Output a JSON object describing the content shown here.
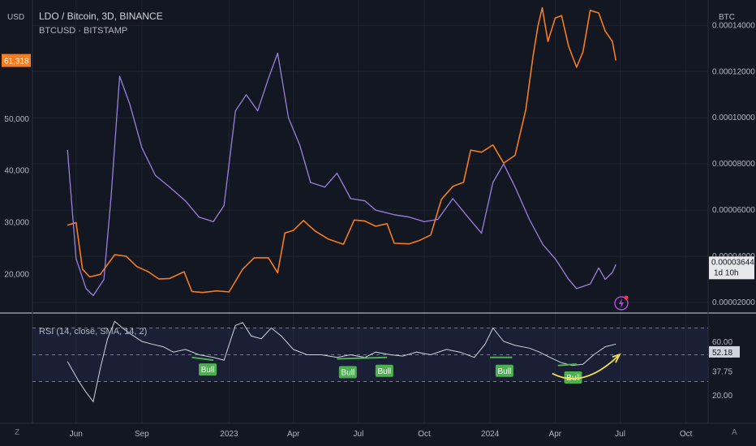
{
  "header": {
    "title": "LDO / Bitcoin, 3D, BINANCE",
    "compare": "BTCUSD · BITSTAMP"
  },
  "axis_units": {
    "left": "USD",
    "right": "BTC"
  },
  "rsi": {
    "label": "RSI (14, close, SMA, 14, 2)"
  },
  "corners": {
    "bottom_left": "Z",
    "bottom_right": "A"
  },
  "colors": {
    "background": "#131722",
    "btc_line": "#f57c1f",
    "ldo_candles": "#9b7fe0",
    "rsi_line": "#d1d4dc",
    "bull_label": "#4caf50",
    "divergence_arrow": "#f5e04c",
    "rsi_band": "#2a2e5a",
    "left_price_tag": "#f57c1f"
  },
  "chart_data": [
    {
      "type": "line",
      "title": "LDO / Bitcoin, 3D, BINANCE",
      "x_ticks": [
        "Jun",
        "Sep",
        "2023",
        "Apr",
        "Jul",
        "Oct",
        "2024",
        "Apr",
        "Jul",
        "Oct"
      ],
      "left_axis": {
        "label": "USD",
        "ticks": [
          "20,000",
          "30,000",
          "40,000",
          "50,000"
        ],
        "price_tag": "61,318"
      },
      "right_axis": {
        "label": "BTC",
        "ticks": [
          "0.00002000",
          "0.00004000",
          "0.00006000",
          "0.00008000",
          "0.00010000",
          "0.00012000",
          "0.00014000"
        ],
        "last_value_tag": "0.00003644",
        "countdown_tag": "1d 10h"
      },
      "series": [
        {
          "name": "BTCUSD · BITSTAMP",
          "axis": "left",
          "color": "#f57c1f",
          "x": [
            "2022-05-20",
            "2022-06-01",
            "2022-06-10",
            "2022-06-20",
            "2022-07-05",
            "2022-07-25",
            "2022-08-10",
            "2022-08-25",
            "2022-09-10",
            "2022-09-25",
            "2022-10-10",
            "2022-10-30",
            "2022-11-10",
            "2022-11-25",
            "2022-12-15",
            "2023-01-01",
            "2023-01-20",
            "2023-02-05",
            "2023-02-25",
            "2023-03-10",
            "2023-03-20",
            "2023-04-01",
            "2023-04-15",
            "2023-05-01",
            "2023-05-20",
            "2023-06-10",
            "2023-06-25",
            "2023-07-10",
            "2023-07-25",
            "2023-08-10",
            "2023-08-20",
            "2023-09-10",
            "2023-09-25",
            "2023-10-10",
            "2023-10-25",
            "2023-11-10",
            "2023-11-25",
            "2023-12-05",
            "2023-12-20",
            "2024-01-05",
            "2024-01-20",
            "2024-02-05",
            "2024-02-20",
            "2024-03-01",
            "2024-03-08",
            "2024-03-14",
            "2024-03-22",
            "2024-04-01",
            "2024-04-10",
            "2024-04-20",
            "2024-05-01",
            "2024-05-10",
            "2024-05-20",
            "2024-06-01",
            "2024-06-10",
            "2024-06-20",
            "2024-06-25"
          ],
          "y": [
            29500,
            30000,
            21000,
            19500,
            20000,
            23800,
            23500,
            21500,
            20500,
            19100,
            19200,
            20500,
            16700,
            16500,
            16800,
            16600,
            21000,
            23200,
            23200,
            20300,
            28000,
            28500,
            30400,
            28400,
            26800,
            25800,
            30500,
            30300,
            29300,
            29800,
            26000,
            25900,
            26600,
            27600,
            34500,
            37000,
            37800,
            44000,
            43600,
            45000,
            41500,
            43000,
            51800,
            62000,
            68000,
            71500,
            65000,
            69500,
            70000,
            64000,
            60000,
            63000,
            71000,
            70500,
            67000,
            65000,
            61318
          ]
        },
        {
          "name": "LDO / Bitcoin",
          "axis": "right",
          "color": "#9b7fe0",
          "x": [
            "2022-05-20",
            "2022-06-01",
            "2022-06-15",
            "2022-06-25",
            "2022-07-10",
            "2022-07-20",
            "2022-08-01",
            "2022-08-15",
            "2022-09-01",
            "2022-09-20",
            "2022-10-10",
            "2022-11-01",
            "2022-11-20",
            "2022-12-10",
            "2022-12-25",
            "2023-01-10",
            "2023-01-25",
            "2023-02-10",
            "2023-02-25",
            "2023-03-10",
            "2023-03-25",
            "2023-04-10",
            "2023-04-25",
            "2023-05-15",
            "2023-06-01",
            "2023-06-20",
            "2023-07-10",
            "2023-07-25",
            "2023-08-20",
            "2023-09-10",
            "2023-10-01",
            "2023-10-20",
            "2023-11-10",
            "2023-12-01",
            "2023-12-20",
            "2024-01-05",
            "2024-01-20",
            "2024-02-05",
            "2024-02-25",
            "2024-03-15",
            "2024-04-01",
            "2024-04-20",
            "2024-05-01",
            "2024-05-20",
            "2024-06-01",
            "2024-06-10",
            "2024-06-20",
            "2024-06-25"
          ],
          "y": [
            8.6e-05,
            3.9e-05,
            2.6e-05,
            2.3e-05,
            3e-05,
            6.6e-05,
            0.000118,
            0.000106,
            8.7e-05,
            7.5e-05,
            7e-05,
            6.4e-05,
            5.7e-05,
            5.5e-05,
            6.2e-05,
            0.000103,
            0.00011,
            0.000103,
            0.000117,
            0.000128,
            0.0001,
            8.8e-05,
            7.2e-05,
            7e-05,
            7.6e-05,
            6.5e-05,
            6.4e-05,
            6e-05,
            5.8e-05,
            5.7e-05,
            5.5e-05,
            5.6e-05,
            6.5e-05,
            5.7e-05,
            5e-05,
            7.2e-05,
            8e-05,
            7e-05,
            5.6e-05,
            4.5e-05,
            3.9e-05,
            3e-05,
            2.6e-05,
            2.8e-05,
            3.5e-05,
            3e-05,
            3.3e-05,
            3.64e-05
          ]
        }
      ],
      "xlim": [
        "2022-04-01",
        "2024-11-01"
      ],
      "left_ylim": [
        13000,
        73000
      ],
      "right_ylim": [
        1.65e-05,
        0.000151
      ],
      "grid": true
    },
    {
      "type": "line",
      "title": "RSI (14, close, SMA, 14, 2)",
      "y_ticks": [
        "20.00",
        "37.75",
        "50.22",
        "52.18",
        "60.00"
      ],
      "series": [
        {
          "name": "RSI (14, close, SMA, 14, 2)",
          "color": "#d1d4dc",
          "x": [
            "2022-05-20",
            "2022-06-05",
            "2022-06-15",
            "2022-06-25",
            "2022-07-05",
            "2022-07-15",
            "2022-07-25",
            "2022-08-05",
            "2022-08-15",
            "2022-09-01",
            "2022-09-15",
            "2022-10-01",
            "2022-10-15",
            "2022-11-01",
            "2022-11-20",
            "2022-12-10",
            "2022-12-25",
            "2023-01-10",
            "2023-01-20",
            "2023-02-01",
            "2023-02-15",
            "2023-03-01",
            "2023-03-15",
            "2023-04-01",
            "2023-04-20",
            "2023-05-10",
            "2023-06-01",
            "2023-06-20",
            "2023-07-10",
            "2023-07-25",
            "2023-08-15",
            "2023-09-01",
            "2023-09-20",
            "2023-10-10",
            "2023-11-01",
            "2023-11-20",
            "2023-12-10",
            "2023-12-25",
            "2024-01-05",
            "2024-01-20",
            "2024-02-05",
            "2024-02-25",
            "2024-03-10",
            "2024-03-25",
            "2024-04-10",
            "2024-04-25",
            "2024-05-10",
            "2024-05-25",
            "2024-06-10",
            "2024-06-25"
          ],
          "y": [
            45,
            30,
            22,
            15,
            40,
            62,
            75,
            70,
            66,
            60,
            58,
            56,
            52,
            54,
            50,
            48,
            46,
            72,
            74,
            64,
            62,
            70,
            64,
            54,
            50,
            50,
            48,
            50,
            48,
            52,
            50,
            49,
            52,
            50,
            54,
            52,
            48,
            58,
            70,
            60,
            57,
            55,
            52,
            48,
            44,
            42,
            43,
            50,
            56,
            58
          ]
        }
      ],
      "ylim": [
        0,
        80
      ],
      "bands": {
        "overbought": 70,
        "oversold": 30
      },
      "annotations": [
        {
          "text": "Bull",
          "x": "2022-12-01",
          "y": 46
        },
        {
          "text": "Bull",
          "x": "2023-06-15",
          "y": 44
        },
        {
          "text": "Bull",
          "x": "2023-08-05",
          "y": 45
        },
        {
          "text": "Bull",
          "x": "2024-01-20",
          "y": 45
        },
        {
          "text": "Bull",
          "x": "2024-04-25",
          "y": 40
        }
      ]
    }
  ]
}
